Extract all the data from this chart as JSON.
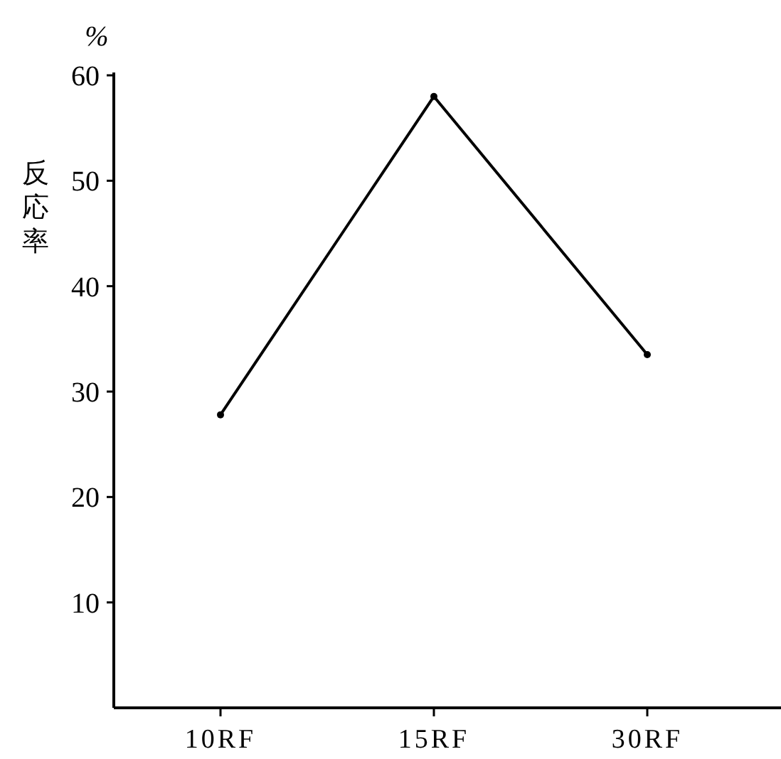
{
  "chart_data": {
    "type": "line",
    "ylabel": "反応率",
    "annotations": [
      "%"
    ],
    "categories": [
      "10RF",
      "15RF",
      "30RF"
    ],
    "series": [
      {
        "color": "#000000",
        "values": [
          27.8,
          58,
          33.5
        ]
      }
    ],
    "ylim": [
      0,
      60
    ],
    "yticks": [
      10,
      20,
      30,
      40,
      50,
      60
    ],
    "marker": "circle",
    "line_style": "solid"
  }
}
